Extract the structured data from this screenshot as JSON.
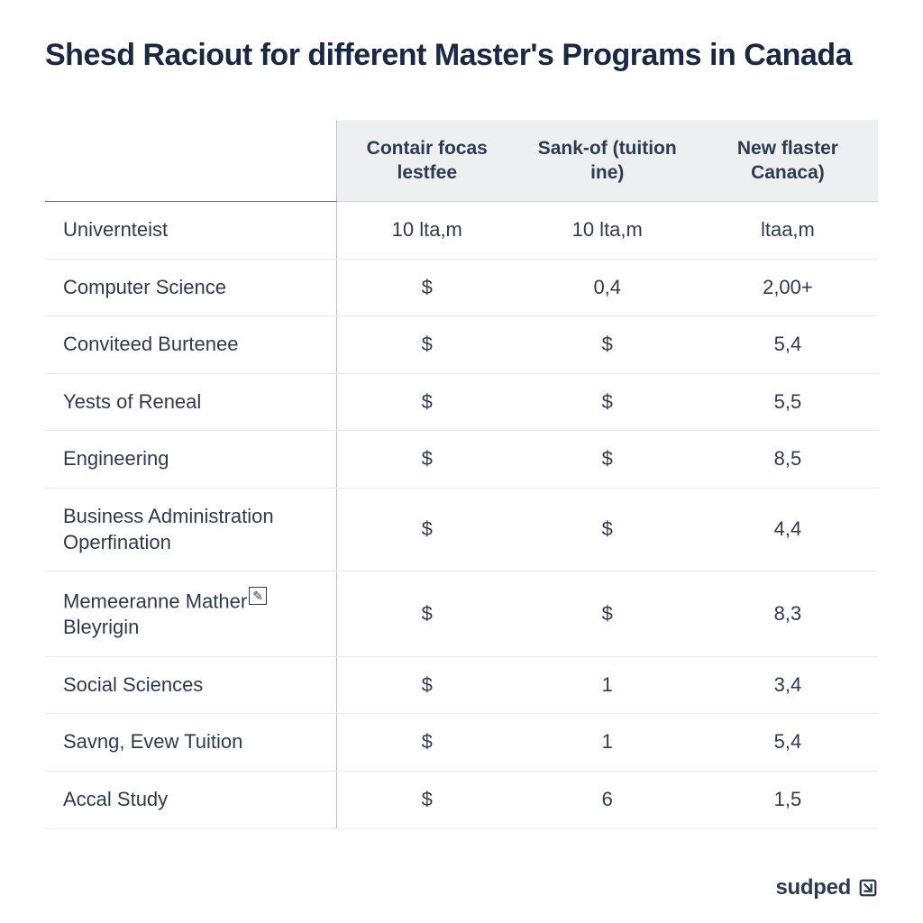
{
  "title": "Shesd Raciout for different Master's Programs in Canada",
  "table": {
    "columns": [
      {
        "header": "",
        "width": "35%"
      },
      {
        "header": "Contair focas lestfee",
        "width": "21.67%"
      },
      {
        "header": "Sank-of (tuition ine)",
        "width": "21.67%"
      },
      {
        "header": "New flaster Canaca)",
        "width": "21.67%"
      }
    ],
    "rows": [
      {
        "label": "Univernteist",
        "col1": "10 lta,m",
        "col2": "10 lta,m",
        "col3": "ltaa,m"
      },
      {
        "label": "Computer Science",
        "col1": "$",
        "col2": "0,4",
        "col3": "2,00+"
      },
      {
        "label": "Conviteed Burtenee",
        "col1": "$",
        "col2": "$",
        "col3": "5,4"
      },
      {
        "label": "Yests of Reneal",
        "col1": "$",
        "col2": "$",
        "col3": "5,5"
      },
      {
        "label": "Engineering",
        "col1": "$",
        "col2": "$",
        "col3": "8,5"
      },
      {
        "label": "Business Administration Operfination",
        "col1": "$",
        "col2": "$",
        "col3": "4,4"
      },
      {
        "label": "Memeeranne Mather Bleyrigin",
        "col1": "$",
        "col2": "$",
        "col3": "8,3",
        "has_special": true
      },
      {
        "label": "Social Sciences",
        "col1": "$",
        "col2": "1",
        "col3": "3,4"
      },
      {
        "label": "Savng, Evew Tuition",
        "col1": "$",
        "col2": "1",
        "col3": "5,4"
      },
      {
        "label": "Accal Study",
        "col1": "$",
        "col2": "6",
        "col3": "1,5"
      }
    ],
    "header_bg": "#edeff1",
    "border_color": "#e8ebed",
    "divider_color": "#b8bec5",
    "text_color": "#2d3b52",
    "font_size": 22,
    "header_font_size": 21
  },
  "footer": {
    "brand_text": "sudped",
    "brand_color": "#2d3b52"
  },
  "styles": {
    "background_color": "#ffffff",
    "title_color": "#1a2845",
    "title_font_size": 34,
    "title_font_weight": 700
  }
}
